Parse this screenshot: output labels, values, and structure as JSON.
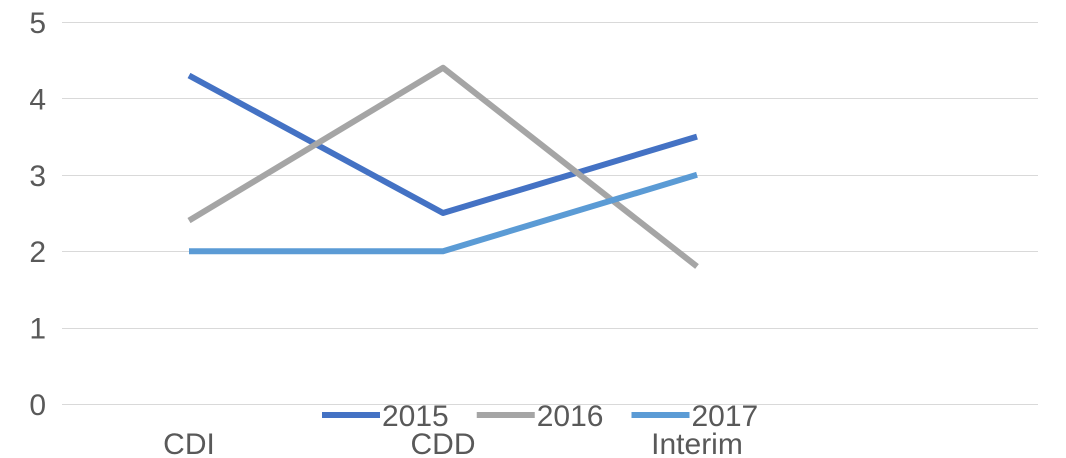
{
  "chart_data": {
    "type": "line",
    "title": "",
    "xlabel": "",
    "ylabel": "",
    "categories": [
      "CDI",
      "CDD",
      "Interim"
    ],
    "ylim": [
      0,
      5
    ],
    "yticks": [
      0,
      1,
      2,
      3,
      4,
      5
    ],
    "grid": true,
    "legend_position": "bottom",
    "series": [
      {
        "name": "2015",
        "values": [
          4.3,
          2.5,
          3.5
        ],
        "color": "#4472c4"
      },
      {
        "name": "2016",
        "values": [
          2.4,
          4.4,
          1.8
        ],
        "color": "#a5a5a5"
      },
      {
        "name": "2017",
        "values": [
          2.0,
          2.0,
          3.0
        ],
        "color": "#5b9bd5"
      }
    ]
  }
}
